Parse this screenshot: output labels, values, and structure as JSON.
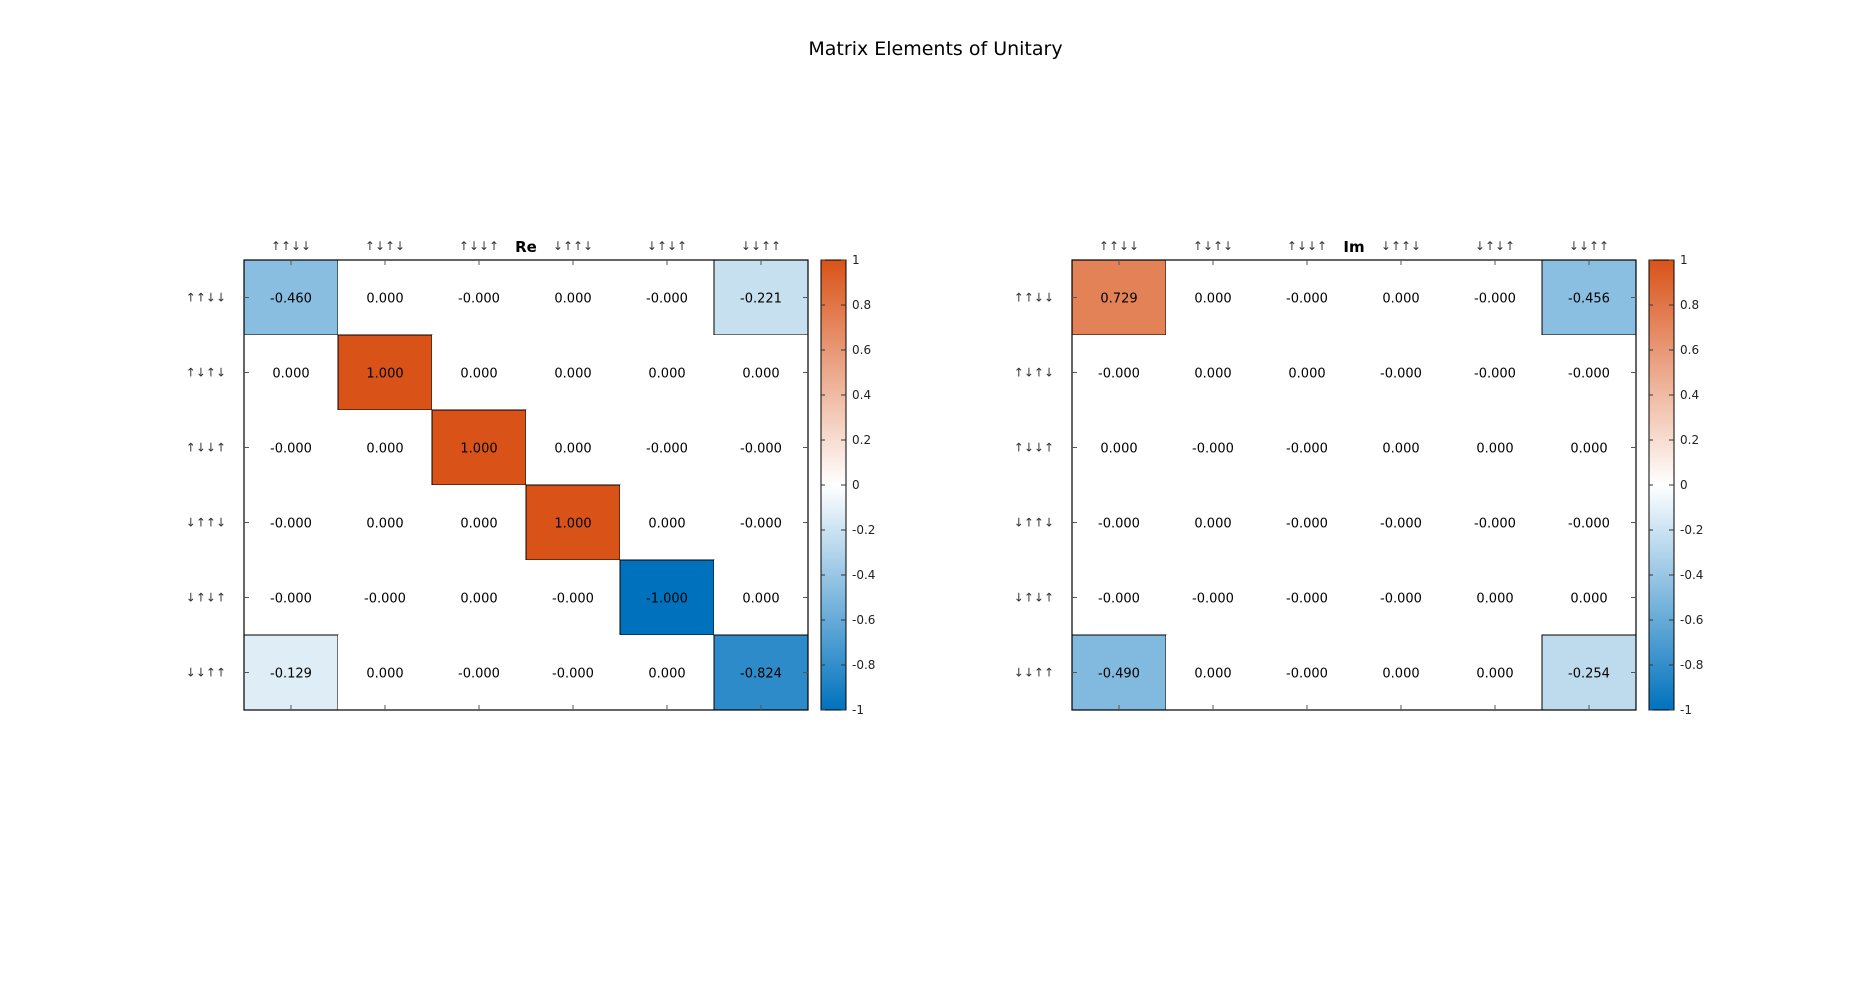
{
  "figure": {
    "title": "Matrix Elements of Unitary"
  },
  "chart_data": [
    {
      "type": "heatmap",
      "title": "Re",
      "row_labels": [
        "↑↑↓↓",
        "↑↓↑↓",
        "↑↓↓↑",
        "↓↑↑↓",
        "↓↑↓↑",
        "↓↓↑↑"
      ],
      "col_labels": [
        "↑↑↓↓",
        "↑↓↑↓",
        "↑↓↓↑",
        "↓↑↑↓",
        "↓↑↓↑",
        "↓↓↑↑"
      ],
      "values": [
        [
          -0.46,
          0.0,
          -0.0,
          0.0,
          -0.0,
          -0.221
        ],
        [
          0.0,
          1.0,
          0.0,
          0.0,
          0.0,
          0.0
        ],
        [
          -0.0,
          0.0,
          1.0,
          0.0,
          -0.0,
          -0.0
        ],
        [
          -0.0,
          0.0,
          0.0,
          1.0,
          0.0,
          -0.0
        ],
        [
          -0.0,
          -0.0,
          0.0,
          -0.0,
          -1.0,
          0.0
        ],
        [
          -0.129,
          0.0,
          -0.0,
          -0.0,
          0.0,
          -0.824
        ]
      ],
      "cell_text": [
        [
          "-0.460",
          "0.000",
          "-0.000",
          "0.000",
          "-0.000",
          "-0.221"
        ],
        [
          "0.000",
          "1.000",
          "0.000",
          "0.000",
          "0.000",
          "0.000"
        ],
        [
          "-0.000",
          "0.000",
          "1.000",
          "0.000",
          "-0.000",
          "-0.000"
        ],
        [
          "-0.000",
          "0.000",
          "0.000",
          "1.000",
          "0.000",
          "-0.000"
        ],
        [
          "-0.000",
          "-0.000",
          "0.000",
          "-0.000",
          "-1.000",
          "0.000"
        ],
        [
          "-0.129",
          "0.000",
          "-0.000",
          "-0.000",
          "0.000",
          "-0.824"
        ]
      ],
      "clim": [
        -1,
        1
      ],
      "colorbar_ticks": [
        1,
        0.8,
        0.6,
        0.4,
        0.2,
        0,
        -0.2,
        -0.4,
        -0.6,
        -0.8,
        -1
      ],
      "colorbar_tick_labels": [
        "1",
        "0.8",
        "0.6",
        "0.4",
        "0.2",
        "0",
        "-0.2",
        "-0.4",
        "-0.6",
        "-0.8",
        "-1"
      ]
    },
    {
      "type": "heatmap",
      "title": "Im",
      "row_labels": [
        "↑↑↓↓",
        "↑↓↑↓",
        "↑↓↓↑",
        "↓↑↑↓",
        "↓↑↓↑",
        "↓↓↑↑"
      ],
      "col_labels": [
        "↑↑↓↓",
        "↑↓↑↓",
        "↑↓↓↑",
        "↓↑↑↓",
        "↓↑↓↑",
        "↓↓↑↑"
      ],
      "values": [
        [
          0.729,
          0.0,
          -0.0,
          0.0,
          -0.0,
          -0.456
        ],
        [
          -0.0,
          0.0,
          0.0,
          -0.0,
          -0.0,
          -0.0
        ],
        [
          0.0,
          -0.0,
          -0.0,
          0.0,
          0.0,
          0.0
        ],
        [
          -0.0,
          0.0,
          -0.0,
          -0.0,
          -0.0,
          -0.0
        ],
        [
          -0.0,
          -0.0,
          -0.0,
          -0.0,
          0.0,
          0.0
        ],
        [
          -0.49,
          0.0,
          -0.0,
          0.0,
          0.0,
          -0.254
        ]
      ],
      "cell_text": [
        [
          "0.729",
          "0.000",
          "-0.000",
          "0.000",
          "-0.000",
          "-0.456"
        ],
        [
          "-0.000",
          "0.000",
          "0.000",
          "-0.000",
          "-0.000",
          "-0.000"
        ],
        [
          "0.000",
          "-0.000",
          "-0.000",
          "0.000",
          "0.000",
          "0.000"
        ],
        [
          "-0.000",
          "0.000",
          "-0.000",
          "-0.000",
          "-0.000",
          "-0.000"
        ],
        [
          "-0.000",
          "-0.000",
          "-0.000",
          "-0.000",
          "0.000",
          "0.000"
        ],
        [
          "-0.490",
          "0.000",
          "-0.000",
          "0.000",
          "0.000",
          "-0.254"
        ]
      ],
      "clim": [
        -1,
        1
      ],
      "colorbar_ticks": [
        1,
        0.8,
        0.6,
        0.4,
        0.2,
        0,
        -0.2,
        -0.4,
        -0.6,
        -0.8,
        -1
      ],
      "colorbar_tick_labels": [
        "1",
        "0.8",
        "0.6",
        "0.4",
        "0.2",
        "0",
        "-0.2",
        "-0.4",
        "-0.6",
        "-0.8",
        "-1"
      ]
    }
  ],
  "colormap": {
    "negative": "#0072BD",
    "zero": "#FFFFFF",
    "positive": "#D95319"
  }
}
